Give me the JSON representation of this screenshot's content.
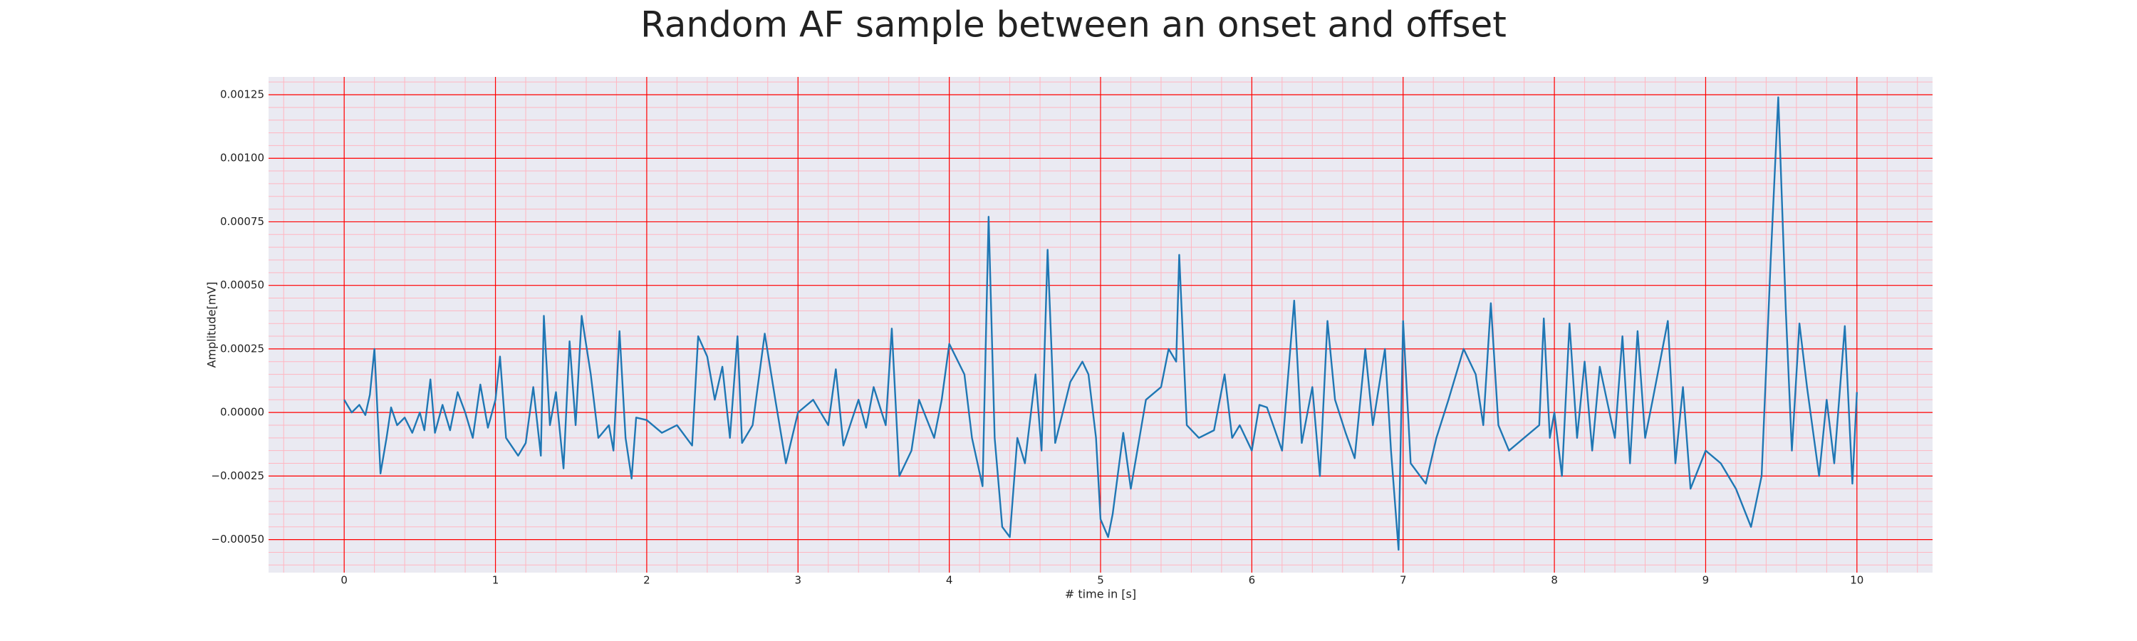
{
  "chart_data": {
    "type": "line",
    "title": "Random AF sample between an onset and offset",
    "x_label": "# time in [s]",
    "y_label": "Amplitude[mV]",
    "xlim": [
      -0.5,
      10.5
    ],
    "ylim": [
      -0.00063,
      0.00132
    ],
    "xticks": [
      0,
      1,
      2,
      3,
      4,
      5,
      6,
      7,
      8,
      9,
      10
    ],
    "yticks": [
      {
        "value": -0.0005,
        "label": "−0.00050"
      },
      {
        "value": -0.00025,
        "label": "−0.00025"
      },
      {
        "value": 0,
        "label": "0.00000"
      },
      {
        "value": 0.00025,
        "label": "0.00025"
      },
      {
        "value": 0.0005,
        "label": "0.00050"
      },
      {
        "value": 0.00075,
        "label": "0.00075"
      },
      {
        "value": 0.001,
        "label": "0.00100"
      },
      {
        "value": 0.00125,
        "label": "0.00125"
      }
    ],
    "grid": true,
    "minor_grid": true,
    "grid_color": "#ff0000",
    "minor_grid_color": "#ffb6c1",
    "background": "#eaeaf2",
    "series": [
      {
        "color": "#1f77b4",
        "x": [
          0,
          0.05,
          0.1,
          0.14,
          0.17,
          0.2,
          0.24,
          0.28,
          0.31,
          0.35,
          0.4,
          0.45,
          0.5,
          0.53,
          0.57,
          0.6,
          0.65,
          0.7,
          0.75,
          0.8,
          0.85,
          0.9,
          0.95,
          1.0,
          1.03,
          1.07,
          1.15,
          1.2,
          1.25,
          1.3,
          1.32,
          1.36,
          1.4,
          1.45,
          1.49,
          1.53,
          1.57,
          1.63,
          1.68,
          1.75,
          1.78,
          1.82,
          1.86,
          1.9,
          1.93,
          2.0,
          2.1,
          2.2,
          2.3,
          2.34,
          2.4,
          2.45,
          2.5,
          2.55,
          2.6,
          2.63,
          2.7,
          2.78,
          2.85,
          2.92,
          3.0,
          3.1,
          3.2,
          3.25,
          3.3,
          3.4,
          3.45,
          3.5,
          3.58,
          3.62,
          3.67,
          3.75,
          3.8,
          3.9,
          3.95,
          4.0,
          4.1,
          4.15,
          4.22,
          4.26,
          4.3,
          4.35,
          4.4,
          4.45,
          4.5,
          4.57,
          4.61,
          4.65,
          4.7,
          4.8,
          4.88,
          4.92,
          4.97,
          5.0,
          5.05,
          5.08,
          5.15,
          5.2,
          5.3,
          5.4,
          5.45,
          5.5,
          5.52,
          5.57,
          5.65,
          5.75,
          5.82,
          5.87,
          5.92,
          6.0,
          6.05,
          6.1,
          6.2,
          6.28,
          6.33,
          6.4,
          6.45,
          6.5,
          6.55,
          6.62,
          6.68,
          6.75,
          6.8,
          6.88,
          6.92,
          6.97,
          7.0,
          7.05,
          7.15,
          7.22,
          7.3,
          7.4,
          7.48,
          7.53,
          7.58,
          7.63,
          7.7,
          7.8,
          7.9,
          7.93,
          7.97,
          8.0,
          8.05,
          8.1,
          8.15,
          8.2,
          8.25,
          8.3,
          8.4,
          8.45,
          8.5,
          8.55,
          8.6,
          8.65,
          8.75,
          8.8,
          8.85,
          8.9,
          9.0,
          9.1,
          9.2,
          9.3,
          9.37,
          9.43,
          9.48,
          9.53,
          9.57,
          9.62,
          9.67,
          9.75,
          9.8,
          9.85,
          9.92,
          9.97,
          10.0
        ],
        "values": [
          5e-05,
          0.0,
          3e-05,
          -1e-05,
          7e-05,
          0.00025,
          -0.00024,
          -0.0001,
          2e-05,
          -5e-05,
          -2e-05,
          -8e-05,
          0.0,
          -7e-05,
          0.00013,
          -8e-05,
          3e-05,
          -7e-05,
          8e-05,
          0.0,
          -0.0001,
          0.00011,
          -6e-05,
          5e-05,
          0.00022,
          -0.0001,
          -0.00017,
          -0.00012,
          0.0001,
          -0.00017,
          0.00038,
          -5e-05,
          8e-05,
          -0.00022,
          0.00028,
          -5e-05,
          0.00038,
          0.00015,
          -0.0001,
          -5e-05,
          -0.00015,
          0.00032,
          -0.0001,
          -0.00026,
          -2e-05,
          -3e-05,
          -8e-05,
          -5e-05,
          -0.00013,
          0.0003,
          0.00022,
          5e-05,
          0.00018,
          -0.0001,
          0.0003,
          -0.00012,
          -5e-05,
          0.00031,
          5e-05,
          -0.0002,
          0.0,
          5e-05,
          -5e-05,
          0.00017,
          -0.00013,
          5e-05,
          -6e-05,
          0.0001,
          -5e-05,
          0.00033,
          -0.00025,
          -0.00015,
          5e-05,
          -0.0001,
          5e-05,
          0.00027,
          0.00015,
          -0.0001,
          -0.00029,
          0.00077,
          -0.0001,
          -0.00045,
          -0.00049,
          -0.0001,
          -0.0002,
          0.00015,
          -0.00015,
          0.00064,
          -0.00012,
          0.00012,
          0.0002,
          0.00015,
          -0.0001,
          -0.00042,
          -0.00049,
          -0.0004,
          -8e-05,
          -0.0003,
          5e-05,
          0.0001,
          0.00025,
          0.0002,
          0.00062,
          -5e-05,
          -0.0001,
          -7e-05,
          0.00015,
          -0.0001,
          -5e-05,
          -0.00015,
          3e-05,
          2e-05,
          -0.00015,
          0.00044,
          -0.00012,
          0.0001,
          -0.00025,
          0.00036,
          5e-05,
          -8e-05,
          -0.00018,
          0.00025,
          -5e-05,
          0.00025,
          -0.00015,
          -0.00054,
          0.00036,
          -0.0002,
          -0.00028,
          -0.0001,
          5e-05,
          0.00025,
          0.00015,
          -5e-05,
          0.00043,
          -5e-05,
          -0.00015,
          -0.0001,
          -5e-05,
          0.00037,
          -0.0001,
          0.0,
          -0.00025,
          0.00035,
          -0.0001,
          0.0002,
          -0.00015,
          0.00018,
          -0.0001,
          0.0003,
          -0.0002,
          0.00032,
          -0.0001,
          5e-05,
          0.00036,
          -0.0002,
          0.0001,
          -0.0003,
          -0.00015,
          -0.0002,
          -0.0003,
          -0.00045,
          -0.00025,
          0.0006,
          0.00124,
          0.0004,
          -0.00015,
          0.00035,
          0.0001,
          -0.00025,
          5e-05,
          -0.0002,
          0.00034,
          -0.00028,
          8e-05
        ]
      }
    ]
  }
}
